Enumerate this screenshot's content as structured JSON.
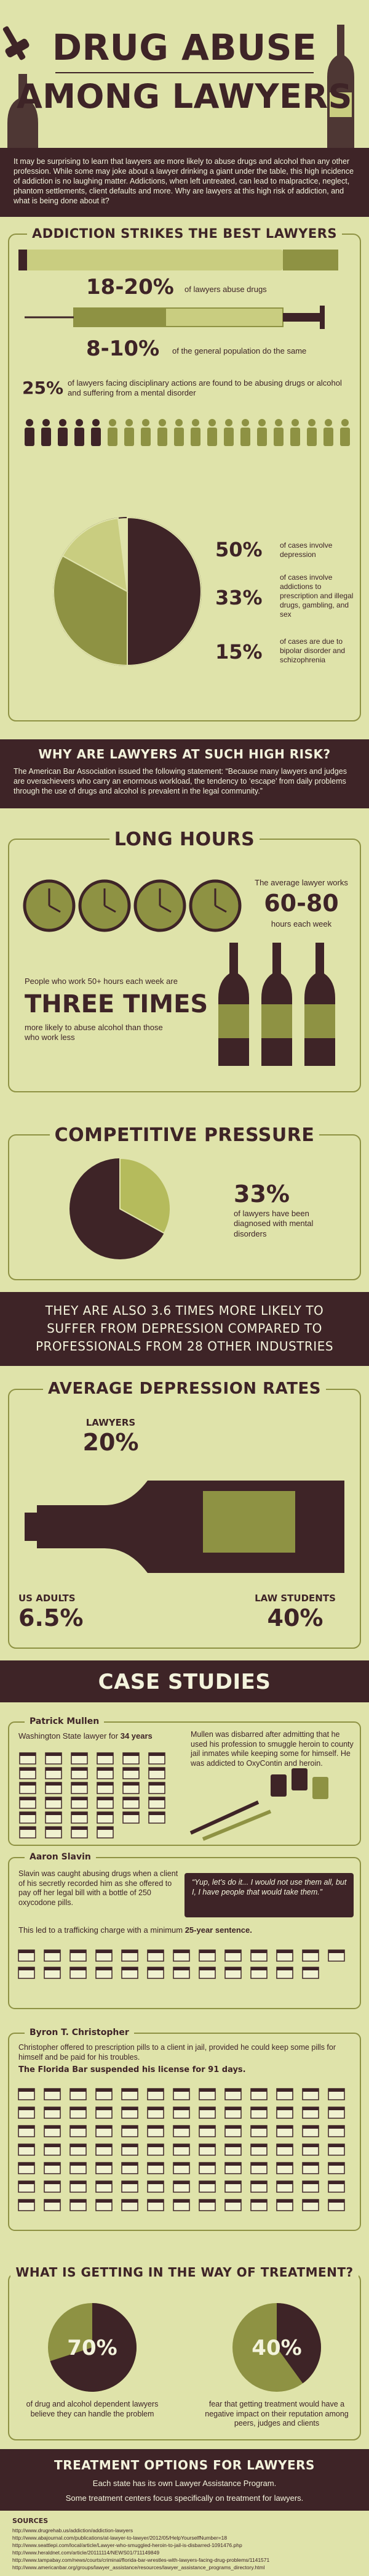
{
  "header": {
    "title_lines": [
      "DRUG ABUSE",
      "AMONG LAWYERS"
    ]
  },
  "intro": "It may be surprising to learn that lawyers are more likely to abuse drugs and alcohol than any other profession. While some may joke about a lawyer drinking a giant under the table, this high incidence of addiction is no laughing matter. Addictions, when left untreated, can lead to malpractice, neglect, phantom settlements, client defaults and more. Why are lawyers at this high risk of addiction, and what is being done about it?",
  "addiction": {
    "heading": "ADDICTION STRIKES THE BEST LAWYERS",
    "stats": [
      {
        "value": "18-20%",
        "text": "of lawyers abuse drugs"
      },
      {
        "value": "8-10%",
        "text": "of the general population do the same"
      }
    ],
    "disciplinary": {
      "value": 25,
      "label": "25%",
      "text": "of lawyers facing disciplinary actions are found to be abusing drugs or alcohol and suffering from a mental disorder"
    },
    "pie": [
      {
        "value": 50,
        "label": "50%",
        "text": "of cases involve depression"
      },
      {
        "value": 33,
        "label": "33%",
        "text": "of cases involve addictions to prescription and illegal drugs, gambling, and sex"
      },
      {
        "value": 15,
        "label": "15%",
        "text": "of cases are due to bipolar disorder and schizophrenia"
      }
    ]
  },
  "why": {
    "heading": "WHY ARE LAWYERS AT SUCH HIGH RISK?",
    "text": "The American Bar Association issued the following statement: “Because many lawyers and judges are overachievers who carry an enormous workload, the tendency to ‘escape’ from daily problems through the use of drugs and alcohol is prevalent in the legal community.”"
  },
  "long_hours": {
    "heading": "LONG HOURS",
    "avg_intro": "The average lawyer works",
    "avg_value": "60-80",
    "avg_unit": "hours each week",
    "risk_intro": "People who work 50+ hours each week are",
    "risk_value": "THREE TIMES",
    "risk_text": "more likely to abuse alcohol than those who work less"
  },
  "pressure": {
    "heading": "COMPETITIVE PRESSURE",
    "value": 33,
    "label": "33%",
    "text": "of lawyers have been diagnosed with mental disorders"
  },
  "depression_band": {
    "lines": [
      "THEY ARE ALSO 3.6 TIMES MORE LIKELY TO",
      "SUFFER FROM DEPRESSION COMPARED TO",
      "PROFESSIONALS FROM 28 OTHER INDUSTRIES"
    ]
  },
  "depression_rates": {
    "heading": "AVERAGE DEPRESSION RATES",
    "groups": [
      {
        "name": "LAWYERS",
        "value": "20%"
      },
      {
        "name": "US ADULTS",
        "value": "6.5%"
      },
      {
        "name": "LAW STUDENTS",
        "value": "40%"
      }
    ]
  },
  "case_studies": {
    "heading": "CASE STUDIES",
    "cases": [
      {
        "name": "Patrick Mullen",
        "lead": "Washington State lawyer for ",
        "lead_bold": "34 years",
        "text": "Mullen was disbarred after admitting that he used his profession to smuggle heroin to county jail inmates while keeping some for himself. He was addicted to OxyContin and heroin."
      },
      {
        "name": "Aaron Slavin",
        "text": "Slavin was caught abusing drugs when a client of his secretly recorded him as she offered to pay off her legal bill with a bottle of 250 oxycodone pills.",
        "quote": "“Yup, let's do it... I would not use them all, but I, I have people that would take them.”",
        "outcome": "This led to a trafficking charge with a minimum ",
        "outcome_bold": "25-year sentence."
      },
      {
        "name": "Byron T. Christopher",
        "text": "Christopher offered to prescription pills to a client in jail, provided he could keep some pills for himself and be paid for his troubles.",
        "outcome": "The Florida Bar suspended his license for 91 days."
      }
    ]
  },
  "treatment": {
    "heading": "WHAT IS GETTING IN THE WAY OF TREATMENT?",
    "items": [
      {
        "value": 70,
        "label": "70%",
        "text": "of drug and alcohol dependent lawyers believe they can handle the problem"
      },
      {
        "value": 40,
        "label": "40%",
        "text": "fear that getting treatment would have a negative impact on their reputation among peers, judges and clients"
      }
    ]
  },
  "options": {
    "heading": "TREATMENT OPTIONS FOR LAWYERS",
    "lines": [
      "Each state has its own Lawyer Assistance Program.",
      "Some treatment centers focus specifically on treatment for lawyers."
    ]
  },
  "sources": {
    "heading": "SOURCES",
    "items": [
      "http://www.drugrehab.us/addiction/addiction-lawyers",
      "http://www.abajournal.com/publications/at-lawyer-to-lawyer/2012/05/HelpYourselfNumber=18",
      "http://www.seattlepi.com/local/article/Lawyer-who-smuggled-heroin-to-jail-is-disbarred-1091476.php",
      "http://www.heraldnet.com/article/20111114/NEWS01/711149849",
      "http://www.tampabay.com/news/courts/criminal/florida-bar-wrestles-with-lawyers-facing-drug-problems/1141571",
      "http://www.americanbar.org/groups/lawyer_assistance/resources/lawyer_assistance_programs_directory.html"
    ]
  }
}
